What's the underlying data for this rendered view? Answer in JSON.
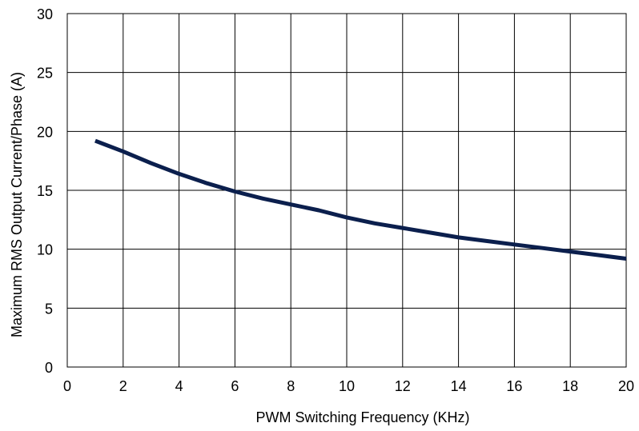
{
  "chart_data": {
    "type": "line",
    "xlabel": "PWM Switching Frequency  (KHz)",
    "ylabel": "Maximum RMS Output Current/Phase  (A)",
    "xlim": [
      0,
      20
    ],
    "ylim": [
      0,
      30
    ],
    "x_ticks": [
      "0",
      "2",
      "4",
      "6",
      "8",
      "10",
      "12",
      "14",
      "16",
      "18",
      "20"
    ],
    "y_ticks": [
      "0",
      "5",
      "10",
      "15",
      "20",
      "25",
      "30"
    ],
    "grid": true,
    "series": [
      {
        "color": "#0b1f4d",
        "x": [
          1,
          2,
          3,
          4,
          5,
          6,
          7,
          8,
          9,
          10,
          11,
          12,
          13,
          14,
          15,
          16,
          17,
          18,
          19,
          20
        ],
        "y": [
          19.2,
          18.3,
          17.3,
          16.4,
          15.6,
          14.9,
          14.3,
          13.8,
          13.3,
          12.7,
          12.2,
          11.8,
          11.4,
          11.0,
          10.7,
          10.4,
          10.1,
          9.8,
          9.5,
          9.2
        ]
      }
    ]
  }
}
